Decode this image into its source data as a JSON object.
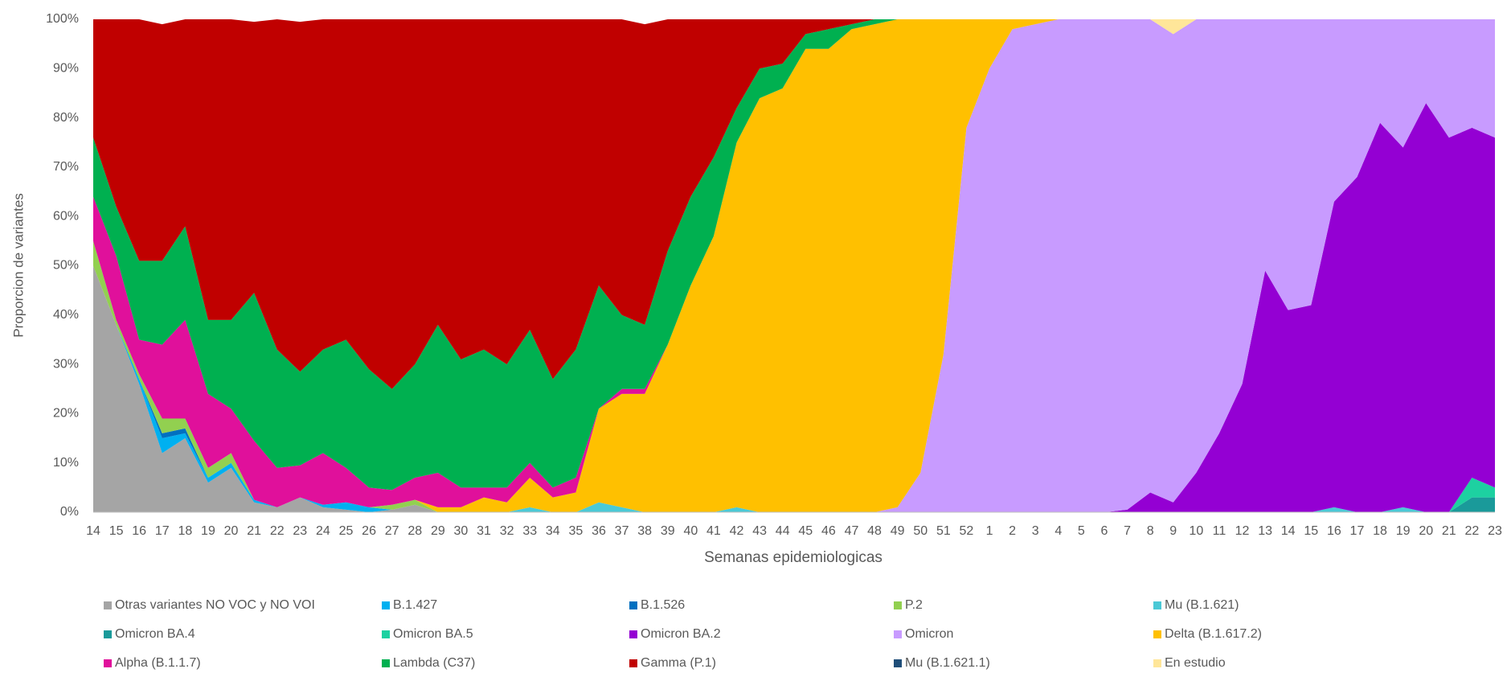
{
  "chart_data": {
    "type": "stacked_area",
    "x_label": "Semanas epidemiologicas",
    "y_label": "Proporcion de variantes",
    "categories": [
      "14",
      "15",
      "16",
      "17",
      "18",
      "19",
      "20",
      "21",
      "22",
      "23",
      "24",
      "25",
      "26",
      "27",
      "28",
      "29",
      "30",
      "31",
      "32",
      "33",
      "34",
      "35",
      "36",
      "37",
      "38",
      "39",
      "40",
      "41",
      "42",
      "43",
      "44",
      "45",
      "46",
      "47",
      "48",
      "49",
      "50",
      "51",
      "52",
      "1",
      "2",
      "3",
      "4",
      "5",
      "6",
      "7",
      "8",
      "9",
      "10",
      "11",
      "12",
      "13",
      "14",
      "15",
      "16",
      "17",
      "18",
      "19",
      "20",
      "21",
      "22",
      "23"
    ],
    "ylim": [
      0,
      100
    ],
    "yticks": [
      {
        "value": 0,
        "label": "0%"
      },
      {
        "value": 10,
        "label": "10%"
      },
      {
        "value": 20,
        "label": "20%"
      },
      {
        "value": 30,
        "label": "30%"
      },
      {
        "value": 40,
        "label": "40%"
      },
      {
        "value": 50,
        "label": "50%"
      },
      {
        "value": 60,
        "label": "60%"
      },
      {
        "value": 70,
        "label": "70%"
      },
      {
        "value": 80,
        "label": "80%"
      },
      {
        "value": 90,
        "label": "90%"
      },
      {
        "value": 100,
        "label": "100%"
      }
    ],
    "grid": false,
    "legend": "bottom",
    "series": [
      {
        "name": "Otras variantes NO VOC y NO VOI",
        "color": "#a5a5a5",
        "values": [
          50,
          38,
          26,
          12,
          15,
          6,
          9,
          2,
          1,
          3,
          1,
          0.5,
          0,
          0.5,
          1.5,
          0,
          0,
          0,
          0,
          0,
          0,
          0,
          0,
          0,
          0,
          0,
          0,
          0,
          0,
          0,
          0,
          0,
          0,
          0,
          0,
          0,
          0,
          0,
          0,
          0,
          0,
          0,
          0,
          0,
          0,
          0,
          0,
          0,
          0,
          0,
          0,
          0,
          0,
          0,
          0,
          0,
          0,
          0,
          0,
          0,
          0,
          0
        ]
      },
      {
        "name": "B.1.427",
        "color": "#00b0f0",
        "values": [
          0,
          0,
          1,
          3,
          1,
          1,
          1,
          0.5,
          0,
          0,
          0.5,
          1.5,
          1,
          0,
          0,
          0,
          0,
          0,
          0,
          0,
          0,
          0,
          0,
          0,
          0,
          0,
          0,
          0,
          0,
          0,
          0,
          0,
          0,
          0,
          0,
          0,
          0,
          0,
          0,
          0,
          0,
          0,
          0,
          0,
          0,
          0,
          0,
          0,
          0,
          0,
          0,
          0,
          0,
          0,
          0,
          0,
          0,
          0,
          0,
          0,
          0,
          0
        ]
      },
      {
        "name": "B.1.526",
        "color": "#0070c0",
        "values": [
          0,
          0,
          0,
          1,
          1,
          0,
          0,
          0,
          0,
          0,
          0,
          0,
          0,
          0,
          0,
          0,
          0,
          0,
          0,
          0,
          0,
          0,
          0,
          0,
          0,
          0,
          0,
          0,
          0,
          0,
          0,
          0,
          0,
          0,
          0,
          0,
          0,
          0,
          0,
          0,
          0,
          0,
          0,
          0,
          0,
          0,
          0,
          0,
          0,
          0,
          0,
          0,
          0,
          0,
          0,
          0,
          0,
          0,
          0,
          0,
          0,
          0
        ]
      },
      {
        "name": "P.2",
        "color": "#92d050",
        "values": [
          5,
          1,
          1,
          3,
          2,
          2,
          2,
          0,
          0,
          0,
          0,
          0,
          0,
          1,
          1,
          0,
          0,
          0,
          0,
          0,
          0,
          0,
          0,
          0,
          0,
          0,
          0,
          0,
          0,
          0,
          0,
          0,
          0,
          0,
          0,
          0,
          0,
          0,
          0,
          0,
          0,
          0,
          0,
          0,
          0,
          0,
          0,
          0,
          0,
          0,
          0,
          0,
          0,
          0,
          0,
          0,
          0,
          0,
          0,
          0,
          0,
          0
        ]
      },
      {
        "name": "Mu (B.1.621)",
        "color": "#4bc9d6",
        "values": [
          0,
          0,
          0,
          0,
          0,
          0,
          0,
          0,
          0,
          0,
          0,
          0,
          0,
          0,
          0,
          0,
          0,
          0,
          0,
          1,
          0,
          0,
          2,
          1,
          0,
          0,
          0,
          0,
          1,
          0,
          0,
          0,
          0,
          0,
          0,
          0,
          0,
          0,
          0,
          0,
          0,
          0,
          0,
          0,
          0,
          0,
          0,
          0,
          0,
          0,
          0,
          0,
          0,
          0,
          1,
          0,
          0,
          1,
          0,
          0,
          0,
          0
        ]
      },
      {
        "name": "Omicron BA.4",
        "color": "#1a9a9a",
        "values": [
          0,
          0,
          0,
          0,
          0,
          0,
          0,
          0,
          0,
          0,
          0,
          0,
          0,
          0,
          0,
          0,
          0,
          0,
          0,
          0,
          0,
          0,
          0,
          0,
          0,
          0,
          0,
          0,
          0,
          0,
          0,
          0,
          0,
          0,
          0,
          0,
          0,
          0,
          0,
          0,
          0,
          0,
          0,
          0,
          0,
          0,
          0,
          0,
          0,
          0,
          0,
          0,
          0,
          0,
          0,
          0,
          0,
          0,
          0,
          0,
          3,
          3
        ]
      },
      {
        "name": "Omicron BA.5",
        "color": "#1dd1a1",
        "values": [
          0,
          0,
          0,
          0,
          0,
          0,
          0,
          0,
          0,
          0,
          0,
          0,
          0,
          0,
          0,
          0,
          0,
          0,
          0,
          0,
          0,
          0,
          0,
          0,
          0,
          0,
          0,
          0,
          0,
          0,
          0,
          0,
          0,
          0,
          0,
          0,
          0,
          0,
          0,
          0,
          0,
          0,
          0,
          0,
          0,
          0,
          0,
          0,
          0,
          0,
          0,
          0,
          0,
          0,
          0,
          0,
          0,
          0,
          0,
          0,
          4,
          2
        ]
      },
      {
        "name": "Omicron BA.2",
        "color": "#9400d3",
        "values": [
          0,
          0,
          0,
          0,
          0,
          0,
          0,
          0,
          0,
          0,
          0,
          0,
          0,
          0,
          0,
          0,
          0,
          0,
          0,
          0,
          0,
          0,
          0,
          0,
          0,
          0,
          0,
          0,
          0,
          0,
          0,
          0,
          0,
          0,
          0,
          0,
          0,
          0,
          0,
          0,
          0,
          0,
          0,
          0,
          0,
          0.5,
          4,
          2,
          8,
          16,
          26,
          49,
          41,
          42,
          62,
          68,
          79,
          73,
          83,
          76,
          71,
          71
        ]
      },
      {
        "name": "Omicron",
        "color": "#c89bff",
        "values": [
          0,
          0,
          0,
          0,
          0,
          0,
          0,
          0,
          0,
          0,
          0,
          0,
          0,
          0,
          0,
          0,
          0,
          0,
          0,
          0,
          0,
          0,
          0,
          0,
          0,
          0,
          0,
          0,
          0,
          0,
          0,
          0,
          0,
          0,
          0,
          1,
          8,
          32,
          78,
          90,
          98,
          99,
          100,
          100,
          100,
          99.5,
          96,
          95,
          92,
          84,
          74,
          51,
          59,
          58,
          37,
          32,
          21,
          26,
          17,
          24,
          22,
          24
        ]
      },
      {
        "name": "Delta (B.1.617.2)",
        "color": "#ffc000",
        "values": [
          0,
          0,
          0,
          0,
          0,
          0,
          0,
          0,
          0,
          0,
          0,
          0,
          0,
          0,
          0,
          1,
          1,
          3,
          2,
          6,
          3,
          4,
          19,
          23,
          24,
          34,
          46,
          56,
          74,
          84,
          86,
          94,
          94,
          98,
          99,
          99,
          92,
          68,
          22,
          10,
          2,
          1,
          0,
          0,
          0,
          0,
          0,
          0,
          0,
          0,
          0,
          0,
          0,
          0,
          0,
          0,
          0,
          0,
          0,
          0,
          0,
          0
        ]
      },
      {
        "name": "Alpha (B.1.1.7)",
        "color": "#e0109b",
        "values": [
          9,
          13,
          7,
          15,
          20,
          15,
          9,
          12,
          8,
          6.5,
          10.5,
          7,
          4,
          3,
          4.5,
          7,
          4,
          2,
          3,
          3,
          2,
          3,
          0,
          1,
          1,
          0,
          0,
          0,
          0,
          0,
          0,
          0,
          0,
          0,
          0,
          0,
          0,
          0,
          0,
          0,
          0,
          0,
          0,
          0,
          0,
          0,
          0,
          0,
          0,
          0,
          0,
          0,
          0,
          0,
          0,
          0,
          0,
          0,
          0,
          0,
          0,
          0
        ]
      },
      {
        "name": "Lambda (C37)",
        "color": "#00b050",
        "values": [
          12,
          10,
          16,
          17,
          19,
          15,
          18,
          30,
          24,
          19,
          21,
          26,
          24,
          20.5,
          23,
          30,
          26,
          28,
          25,
          27,
          22,
          26,
          25,
          15,
          13,
          19,
          18,
          16,
          7,
          6,
          5,
          3,
          4,
          1,
          1,
          0,
          0,
          0,
          0,
          0,
          0,
          0,
          0,
          0,
          0,
          0,
          0,
          0,
          0,
          0,
          0,
          0,
          0,
          0,
          0,
          0,
          0,
          0,
          0,
          0,
          0,
          0
        ]
      },
      {
        "name": "Gamma (P.1)",
        "color": "#c00000",
        "values": [
          24,
          38,
          49,
          48,
          42,
          61,
          61,
          55,
          67,
          71,
          67,
          65,
          71,
          75,
          70,
          62,
          69,
          67,
          70,
          63,
          73,
          67,
          54,
          60,
          61,
          47,
          36,
          28,
          18,
          10,
          9,
          3,
          2,
          1,
          0,
          0,
          0,
          0,
          0,
          0,
          0,
          0,
          0,
          0,
          0,
          0,
          0,
          0,
          0,
          0,
          0,
          0,
          0,
          0,
          0,
          0,
          0,
          0,
          0,
          0,
          0,
          0
        ]
      },
      {
        "name": "Mu (B.1.621.1)",
        "color": "#1f4e79",
        "values": [
          0,
          0,
          0,
          0,
          0,
          0,
          0,
          0,
          0,
          0,
          0,
          0,
          0,
          0,
          0,
          0,
          0,
          0,
          0,
          0,
          0,
          0,
          0,
          0,
          0,
          0,
          0,
          0,
          0,
          0,
          0,
          0,
          0,
          0,
          0,
          0,
          0,
          0,
          0,
          0,
          0,
          0,
          0,
          0,
          0,
          0,
          0,
          0,
          0,
          0,
          0,
          0,
          0,
          0,
          0,
          0,
          0,
          0,
          0,
          0,
          0,
          0
        ]
      },
      {
        "name": "En estudio",
        "color": "#ffe699",
        "values": [
          0,
          0,
          0,
          0,
          0,
          0,
          0,
          0,
          0,
          0,
          0,
          0,
          0,
          0,
          0,
          0,
          0,
          0,
          0,
          0,
          0,
          0,
          0,
          0,
          0,
          0,
          0,
          0,
          0,
          0,
          0,
          0,
          0,
          0,
          0,
          0,
          0,
          0,
          0,
          0,
          0,
          0,
          0,
          0,
          0,
          0,
          0,
          3,
          0,
          0,
          0,
          0,
          0,
          0,
          0,
          0,
          0,
          0,
          0,
          0,
          0,
          0
        ]
      }
    ]
  }
}
